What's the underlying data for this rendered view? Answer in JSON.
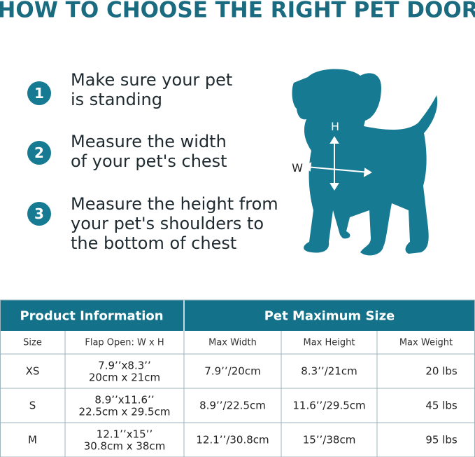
{
  "title": "HOW TO CHOOSE THE RIGHT PET DOOR",
  "steps": [
    {
      "number": "1",
      "lines": [
        "Make sure your pet",
        "is standing"
      ]
    },
    {
      "number": "2",
      "lines": [
        "Measure the width",
        "of your pet's chest"
      ]
    },
    {
      "number": "3",
      "lines": [
        "Measure the height from",
        "your pet's shoulders to",
        "the bottom of chest"
      ]
    }
  ],
  "diagram": {
    "height_label": "H",
    "width_label": "W"
  },
  "table": {
    "group_headers": [
      "Product Information",
      "Pet Maximum Size"
    ],
    "columns": [
      "Size",
      "Flap Open: W x H",
      "Max Width",
      "Max Height",
      "Max Weight"
    ],
    "rows": [
      [
        "XS",
        [
          "7.9’’x8.3’’",
          "20cm x 21cm"
        ],
        "7.9’’/20cm",
        "8.3’’/21cm",
        "20 lbs"
      ],
      [
        "S",
        [
          "8.9’’x11.6’’",
          "22.5cm x 29.5cm"
        ],
        "8.9’’/22.5cm",
        "11.6’’/29.5cm",
        "45 lbs"
      ],
      [
        "M",
        [
          "12.1’’x15’’",
          "30.8cm x 38cm"
        ],
        "12.1’’/30.8cm",
        "15’’/38cm",
        "95 lbs"
      ]
    ]
  }
}
